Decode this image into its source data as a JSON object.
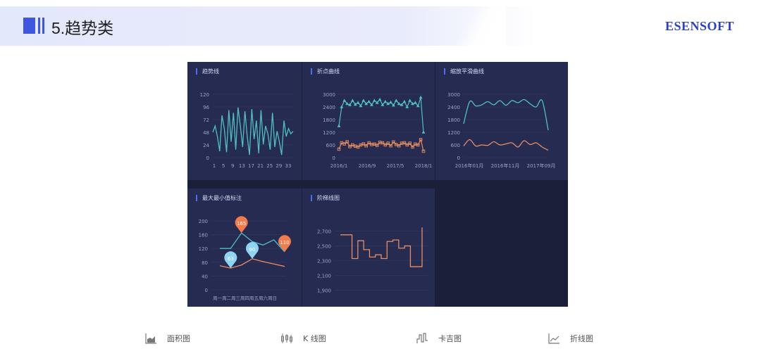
{
  "header": {
    "title": "5.趋势类",
    "brand": "ESENSOFT"
  },
  "colors": {
    "accent": "#3d57e0",
    "panel_bg": "#262b52",
    "dashboard_bg": "#1c1f3a",
    "teal": "#4fc0c4",
    "orange": "#e88d5e",
    "pin_orange": "#f27b4a",
    "pin_blue": "#8fd4f4"
  },
  "panels": {
    "trend": {
      "title": "趋势线"
    },
    "fold": {
      "title": "折点曲线"
    },
    "smooth": {
      "title": "缩放平滑曲线"
    },
    "maxmin": {
      "title": "最大最小值标注"
    },
    "step": {
      "title": "阶梯线图"
    }
  },
  "chart_data": [
    {
      "type": "line",
      "title": "趋势线",
      "ylim": [
        0,
        120
      ],
      "yticks": [
        "120",
        "96",
        "72",
        "48",
        "24",
        "0"
      ],
      "xticks": [
        "1",
        "5",
        "9",
        "13",
        "17",
        "21",
        "25",
        "29",
        "33"
      ],
      "x": [
        1,
        2,
        3,
        4,
        5,
        6,
        7,
        8,
        9,
        10,
        11,
        12,
        13,
        14,
        15,
        16,
        17,
        18,
        19,
        20,
        21,
        22,
        23,
        24,
        25,
        26,
        27,
        28,
        29,
        30,
        31,
        32,
        33,
        34,
        35,
        36
      ],
      "values": [
        48,
        60,
        40,
        12,
        80,
        55,
        10,
        90,
        30,
        85,
        15,
        95,
        60,
        20,
        88,
        40,
        5,
        92,
        35,
        70,
        8,
        90,
        25,
        60,
        45,
        15,
        85,
        20,
        50,
        30,
        5,
        70,
        40,
        55,
        45,
        50
      ],
      "colors": [
        "#4fc0c4"
      ]
    },
    {
      "type": "line",
      "title": "折点曲线",
      "ylim": [
        0,
        3000
      ],
      "yticks": [
        "3000",
        "2400",
        "1800",
        "1200",
        "600",
        "0"
      ],
      "xticks": [
        "2016/1",
        "2016/9",
        "2017/5",
        "2018/1"
      ],
      "series": [
        {
          "values": [
            1500,
            2400,
            2700,
            2550,
            2500,
            2700,
            2520,
            2600,
            2450,
            2700,
            2550,
            2650,
            2500,
            2700,
            2600,
            2750,
            2500,
            2650,
            2550,
            2620,
            2480,
            2700,
            2550,
            2500,
            2650,
            2400,
            2700,
            2550,
            2600,
            2450,
            2850,
            1200
          ],
          "marker": "triangle"
        },
        {
          "values": [
            400,
            700,
            650,
            750,
            520,
            600,
            540,
            500,
            600,
            650,
            560,
            700,
            620,
            640,
            580,
            720,
            700,
            600,
            680,
            560,
            740,
            620,
            560,
            680,
            700,
            600,
            680,
            500,
            640,
            600,
            850,
            300
          ],
          "marker": "square"
        }
      ],
      "colors": [
        "#4fc0c4",
        "#e88d5e"
      ]
    },
    {
      "type": "line",
      "title": "缩放平滑曲线",
      "ylim": [
        0,
        3000
      ],
      "yticks": [
        "3000",
        "2400",
        "1800",
        "1200",
        "600",
        "0"
      ],
      "xticks": [
        "2016年01月",
        "2016年11月",
        "2017年09月"
      ],
      "series": [
        {
          "values": [
            1600,
            2650,
            2450,
            2500,
            2650,
            2500,
            2700,
            2480,
            2700,
            2600,
            2750,
            2550,
            2400,
            2700,
            1300
          ]
        },
        {
          "values": [
            550,
            850,
            550,
            600,
            580,
            750,
            600,
            650,
            700,
            500,
            800,
            620,
            700,
            500,
            350
          ]
        }
      ],
      "colors": [
        "#4fc0c4",
        "#e88d5e"
      ]
    },
    {
      "type": "line",
      "title": "最大最小值标注",
      "ylim": [
        0,
        200
      ],
      "yticks": [
        "200",
        "160",
        "120",
        "80",
        "40",
        "0"
      ],
      "categories": [
        "周一",
        "周二",
        "周三",
        "周四",
        "周五",
        "周六",
        "周日"
      ],
      "xtick_text": "周一周二周三周四周五周六周日",
      "series": [
        {
          "values": [
            120,
            120,
            165,
            140,
            130,
            145,
            110
          ],
          "color": "#4fc0c4"
        },
        {
          "values": [
            70,
            63,
            72,
            90,
            82,
            75,
            68
          ],
          "color": "#e88d5e"
        }
      ],
      "markers": [
        {
          "label": "165",
          "category_index": 2,
          "value": 165,
          "color": "#f27b4a"
        },
        {
          "label": "110",
          "category_index": 6,
          "value": 110,
          "color": "#f27b4a"
        },
        {
          "label": "90",
          "category_index": 3,
          "value": 90,
          "color": "#8fd4f4"
        },
        {
          "label": "63",
          "category_index": 1,
          "value": 63,
          "color": "#8fd4f4"
        }
      ]
    },
    {
      "type": "line",
      "title": "阶梯线图",
      "step": true,
      "ylim": [
        1850,
        2800
      ],
      "yticks": [
        "2,700",
        "2,500",
        "2,300",
        "2,100",
        "1,900"
      ],
      "ytick_values": [
        2700,
        2500,
        2300,
        2100,
        1900
      ],
      "values": [
        2650,
        2650,
        2330,
        2570,
        2450,
        2350,
        2380,
        2330,
        2560,
        2580,
        2470,
        2500,
        2220,
        2220,
        2750
      ],
      "colors": [
        "#e88d5e"
      ]
    }
  ],
  "chart_types": [
    {
      "icon": "area-chart-icon",
      "label": "面积图"
    },
    {
      "icon": "candlestick-chart-icon",
      "label": "K 线图"
    },
    {
      "icon": "gantt-chart-icon",
      "label": "卡吉图"
    },
    {
      "icon": "line-chart-icon",
      "label": "折线图"
    }
  ]
}
